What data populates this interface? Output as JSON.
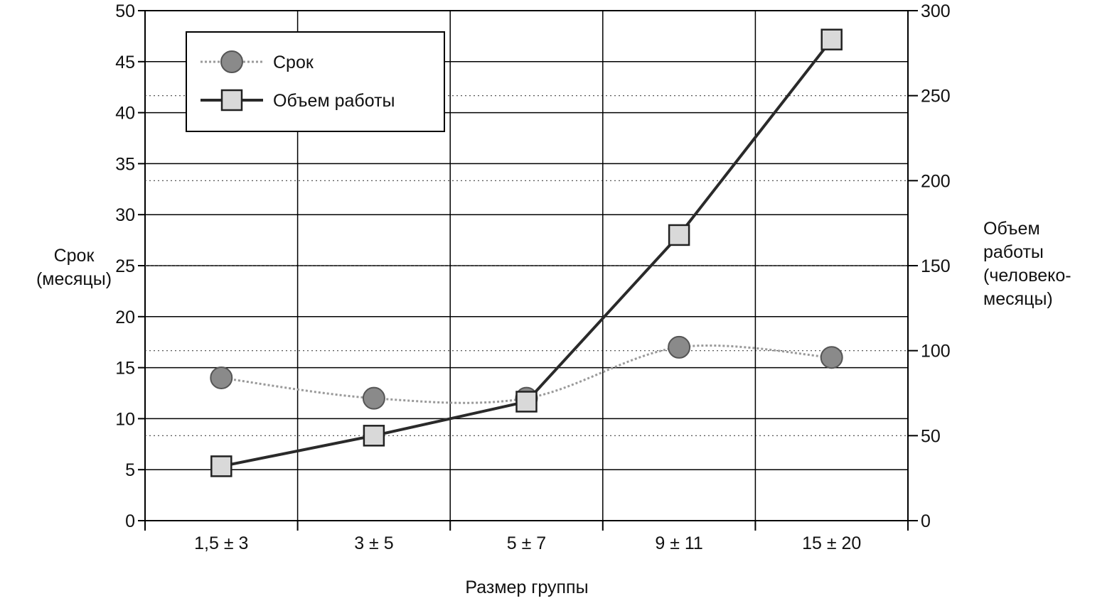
{
  "chart_data": {
    "type": "line",
    "categories": [
      "1,5 ± 3",
      "3 ± 5",
      "5 ± 7",
      "9 ± 11",
      "15 ± 20"
    ],
    "xlabel": "Размер группы",
    "ylabel_left": [
      "Срок",
      "(месяцы)"
    ],
    "ylabel_right": [
      "Объем",
      "работы",
      "(человеко-",
      "месяцы)"
    ],
    "ylim_left": [
      0,
      50
    ],
    "yticks_left": [
      0,
      5,
      10,
      15,
      20,
      25,
      30,
      35,
      40,
      45,
      50
    ],
    "ylim_right": [
      0,
      300
    ],
    "yticks_right": [
      0,
      50,
      100,
      150,
      200,
      250,
      300
    ],
    "grid": true,
    "legend_position": "top-left",
    "series": [
      {
        "name": "Срок",
        "axis": "left",
        "marker": "circle",
        "color": "#8a8a8a",
        "line_color": "#9a9a9a",
        "values": [
          14,
          12,
          12,
          17,
          16
        ]
      },
      {
        "name": "Объем работы",
        "axis": "right",
        "marker": "square",
        "color": "#333333",
        "line_color": "#2a2a2a",
        "values": [
          32,
          50,
          70,
          168,
          283
        ]
      }
    ]
  }
}
